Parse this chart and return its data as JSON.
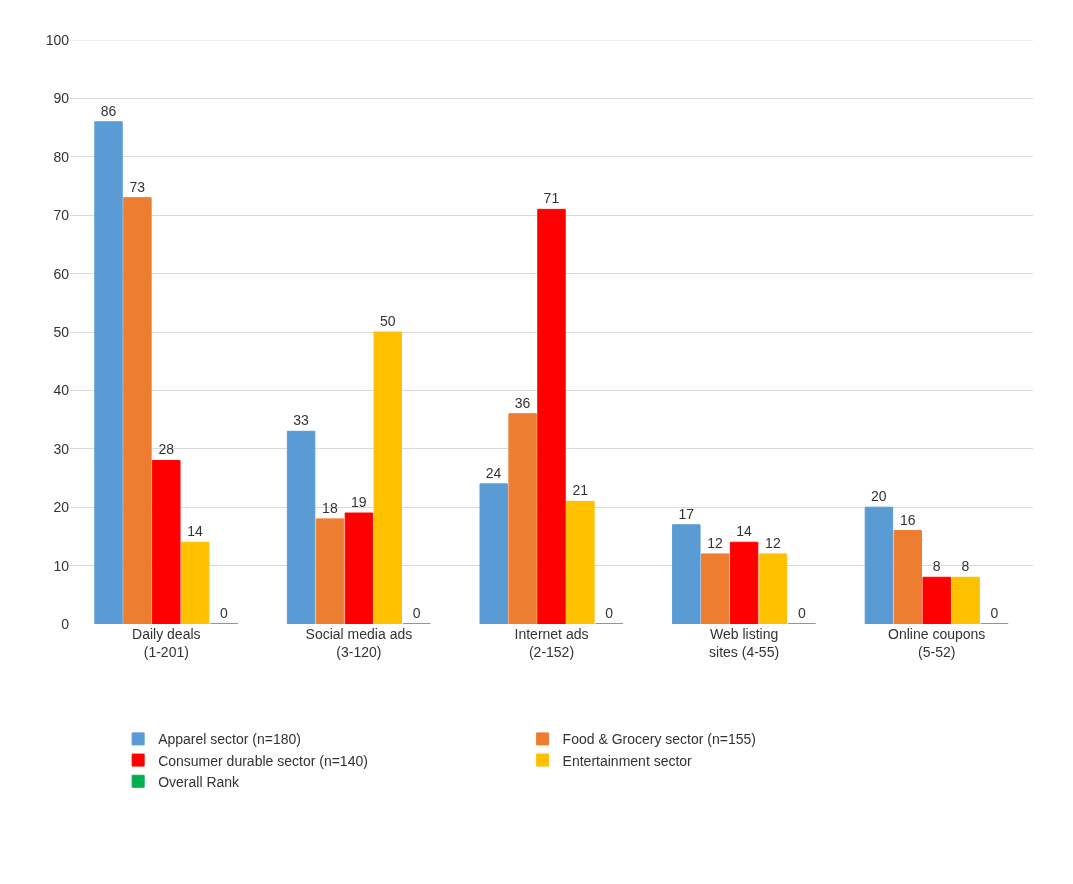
{
  "chart_data": {
    "type": "bar",
    "categories": [
      "Daily deals (1-201)",
      "Social media ads (3-120)",
      "Internet ads (2-152)",
      "Web listing sites (4-55)",
      "Online coupons (5-52)"
    ],
    "series": [
      {
        "name": "Apparel sector (n=180)",
        "color": "#5b9bd5",
        "values": [
          86,
          33,
          24,
          17,
          20
        ]
      },
      {
        "name": "Food & Grocery sector (n=155)",
        "color": "#ed7d31",
        "values": [
          73,
          18,
          36,
          12,
          16
        ]
      },
      {
        "name": "Consumer durable sector (n=140)",
        "color": "#ff0000",
        "values": [
          28,
          19,
          71,
          14,
          8
        ]
      },
      {
        "name": "Entertainment sector",
        "color": "#ffc000",
        "values": [
          14,
          50,
          21,
          12,
          8
        ]
      },
      {
        "name": "Overall Rank",
        "color": "#00b050",
        "values": [
          0,
          0,
          0,
          0,
          0
        ]
      }
    ],
    "ylim": [
      0,
      100
    ],
    "yticks": [
      0,
      10,
      20,
      30,
      40,
      50,
      60,
      70,
      80,
      90,
      100
    ],
    "grid": "y",
    "legend": "bottom",
    "data_labels": true
  }
}
